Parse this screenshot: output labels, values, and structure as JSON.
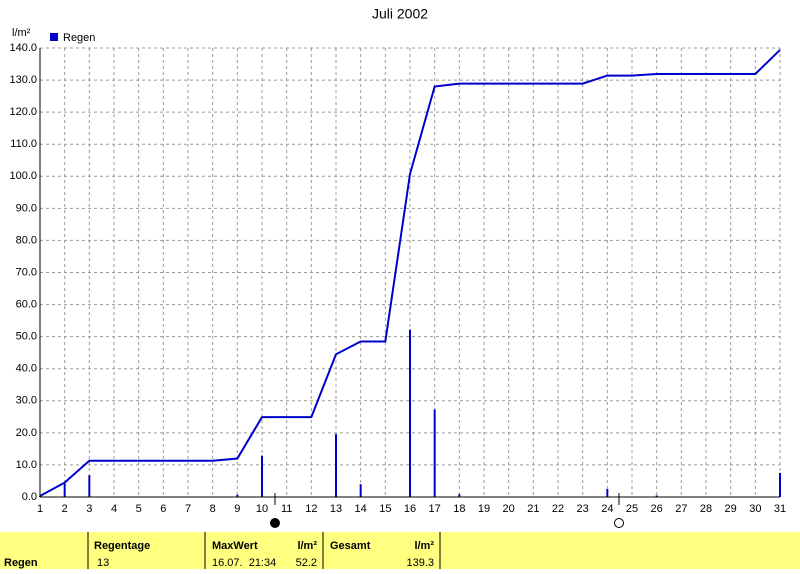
{
  "chart_data": {
    "type": "bar",
    "title": "Juli 2002",
    "y_label": "l/m²",
    "x": [
      1,
      2,
      3,
      4,
      5,
      6,
      7,
      8,
      9,
      10,
      11,
      12,
      13,
      14,
      15,
      16,
      17,
      18,
      19,
      20,
      21,
      22,
      23,
      24,
      25,
      26,
      27,
      28,
      29,
      30,
      31
    ],
    "series": [
      {
        "name": "Regen",
        "color": "#0000cc",
        "values": [
          0.3,
          4.2,
          6.8,
          0,
          0,
          0,
          0,
          0,
          0.7,
          12.9,
          0,
          0,
          19.6,
          4.0,
          0,
          52.2,
          27.3,
          0.9,
          0,
          0,
          0,
          0,
          0,
          2.5,
          0,
          0.5,
          0,
          0,
          0,
          0,
          7.5
        ]
      }
    ],
    "cumulative": {
      "color": "#0000cc",
      "values": [
        0.3,
        4.5,
        11.3,
        11.3,
        11.3,
        11.3,
        11.3,
        11.3,
        12.0,
        24.9,
        24.9,
        24.9,
        44.5,
        48.5,
        48.5,
        100.7,
        128.0,
        128.9,
        128.9,
        128.9,
        128.9,
        128.9,
        128.9,
        131.4,
        131.4,
        131.9,
        131.9,
        131.9,
        131.9,
        131.9,
        139.4
      ]
    },
    "xlim": [
      1,
      31
    ],
    "ylim": [
      0,
      140
    ],
    "yticks": [
      {
        "value": 0,
        "label": "0.0"
      },
      {
        "value": 10,
        "label": "10.0"
      },
      {
        "value": 20,
        "label": "20.0"
      },
      {
        "value": 30,
        "label": "30.0"
      },
      {
        "value": 40,
        "label": "40.0"
      },
      {
        "value": 50,
        "label": "50.0"
      },
      {
        "value": 60,
        "label": "60.0"
      },
      {
        "value": 70,
        "label": "70.0"
      },
      {
        "value": 80,
        "label": "80.0"
      },
      {
        "value": 90,
        "label": "90.0"
      },
      {
        "value": 100,
        "label": "100.0"
      },
      {
        "value": 110,
        "label": "110.0"
      },
      {
        "value": 120,
        "label": "120.0"
      },
      {
        "value": 130,
        "label": "130.0"
      },
      {
        "value": 140,
        "label": "140.0"
      }
    ],
    "grid": true
  },
  "table": {
    "header": [
      "Regentage",
      "MaxWert",
      "l/m²",
      "Gesamt",
      "l/m²"
    ],
    "rows": [
      [
        "Regen",
        "13",
        "16.07.  21:34",
        "52.2",
        "139.3"
      ]
    ]
  }
}
